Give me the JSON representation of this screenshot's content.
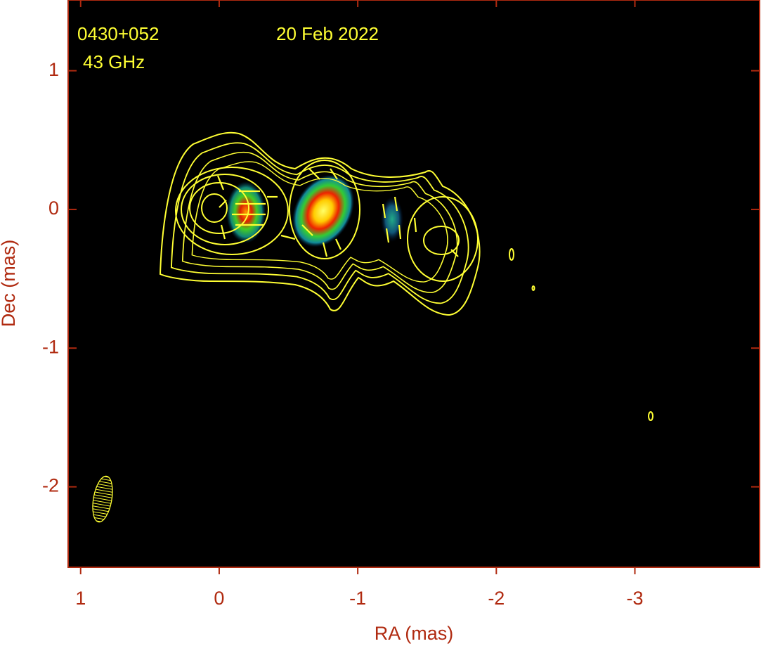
{
  "chart_data": {
    "type": "image",
    "annotations": [
      "0430+052",
      "43 GHz",
      "20 Feb 2022"
    ],
    "x_label": "RA (mas)",
    "y_label": "Dec (mas)",
    "xlim": [
      1.09,
      -3.9
    ],
    "ylim": [
      -2.58,
      1.51
    ],
    "xticks": [
      1,
      0,
      -1,
      -2,
      -3
    ],
    "yticks": [
      1,
      0,
      -1,
      -2
    ]
  }
}
